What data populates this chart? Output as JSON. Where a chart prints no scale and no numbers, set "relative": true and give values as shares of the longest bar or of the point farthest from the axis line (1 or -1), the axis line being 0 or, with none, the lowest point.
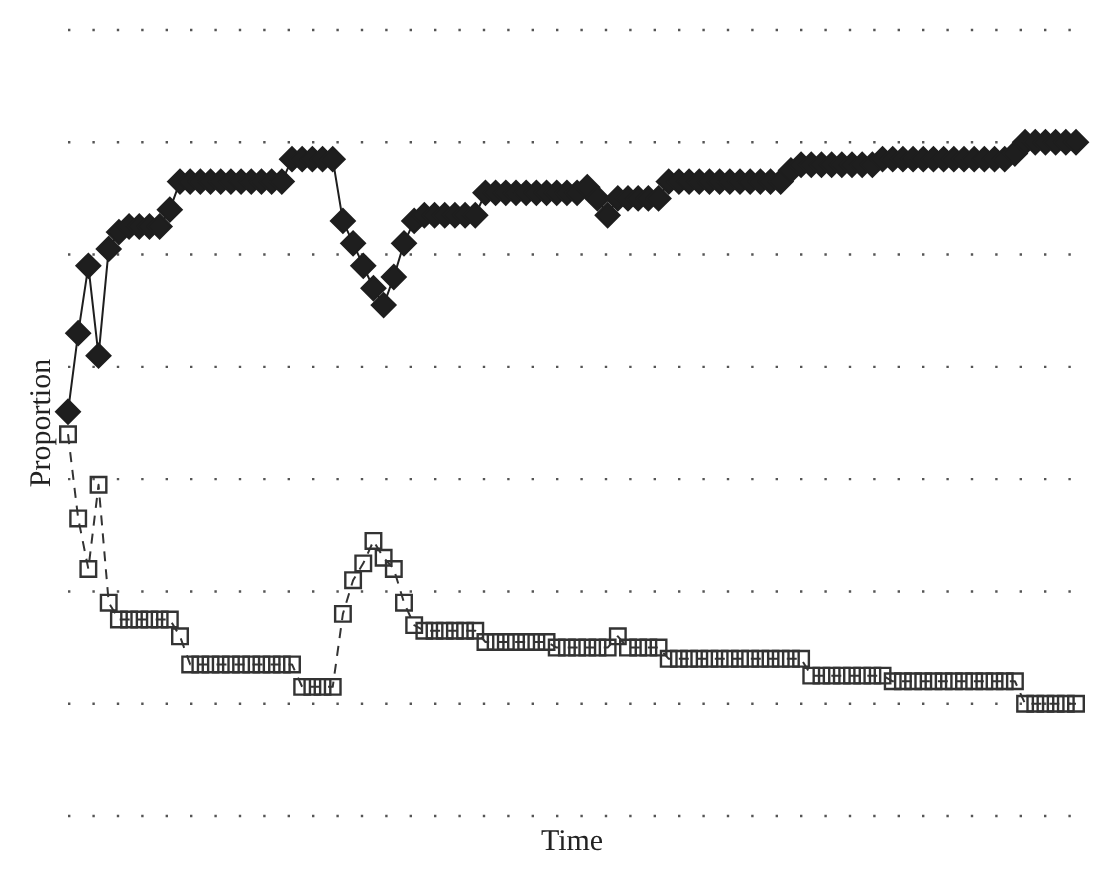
{
  "chart_data": {
    "type": "line",
    "xlabel": "Time",
    "ylabel": "Proportion",
    "relative": true,
    "grid": "y",
    "categories": [
      null,
      null,
      null,
      null,
      null,
      null,
      null,
      null,
      null,
      null,
      null,
      null,
      null,
      null,
      null,
      null,
      null,
      null,
      null,
      null,
      null,
      null,
      null,
      null,
      null,
      null,
      null,
      null,
      null,
      null,
      null,
      null,
      null,
      null,
      null,
      null,
      null,
      null,
      null,
      null,
      null,
      null,
      null,
      null,
      null,
      null,
      null,
      null,
      null,
      null,
      null,
      null,
      null,
      null,
      null,
      null,
      null,
      null,
      null,
      null,
      null,
      null,
      null,
      null,
      null,
      null,
      null,
      null,
      null,
      null,
      null,
      null,
      null,
      null,
      null,
      null,
      null,
      null,
      null,
      null,
      null,
      null,
      null,
      null,
      null,
      null,
      null,
      null,
      null,
      null,
      null,
      null,
      null,
      null,
      null,
      null,
      null,
      null,
      null,
      null
    ],
    "series": [
      {
        "color": "#1e1e1e",
        "marker": "diamond",
        "line_style": "solid",
        "values": [
          0.52,
          0.66,
          0.78,
          0.62,
          0.81,
          0.84,
          0.85,
          0.85,
          0.85,
          0.85,
          0.88,
          0.93,
          0.93,
          0.93,
          0.93,
          0.93,
          0.93,
          0.93,
          0.93,
          0.93,
          0.93,
          0.93,
          0.97,
          0.97,
          0.97,
          0.97,
          0.97,
          0.86,
          0.82,
          0.78,
          0.74,
          0.71,
          0.76,
          0.82,
          0.86,
          0.87,
          0.87,
          0.87,
          0.87,
          0.87,
          0.87,
          0.91,
          0.91,
          0.91,
          0.91,
          0.91,
          0.91,
          0.91,
          0.91,
          0.91,
          0.91,
          0.92,
          0.9,
          0.87,
          0.9,
          0.9,
          0.9,
          0.9,
          0.9,
          0.93,
          0.93,
          0.93,
          0.93,
          0.93,
          0.93,
          0.93,
          0.93,
          0.93,
          0.93,
          0.93,
          0.93,
          0.95,
          0.96,
          0.96,
          0.96,
          0.96,
          0.96,
          0.96,
          0.96,
          0.96,
          0.97,
          0.97,
          0.97,
          0.97,
          0.97,
          0.97,
          0.97,
          0.97,
          0.97,
          0.97,
          0.97,
          0.97,
          0.97,
          0.98,
          1,
          1,
          1,
          1,
          1,
          1
        ]
      },
      {
        "color": "#333333",
        "marker": "square",
        "line_style": "dashed",
        "values": [
          0.48,
          0.33,
          0.24,
          0.39,
          0.18,
          0.15,
          0.15,
          0.15,
          0.15,
          0.15,
          0.15,
          0.12,
          0.07,
          0.07,
          0.07,
          0.07,
          0.07,
          0.07,
          0.07,
          0.07,
          0.07,
          0.07,
          0.07,
          0.03,
          0.03,
          0.03,
          0.03,
          0.16,
          0.22,
          0.25,
          0.29,
          0.26,
          0.24,
          0.18,
          0.14,
          0.13,
          0.13,
          0.13,
          0.13,
          0.13,
          0.13,
          0.11,
          0.11,
          0.11,
          0.11,
          0.11,
          0.11,
          0.11,
          0.1,
          0.1,
          0.1,
          0.1,
          0.1,
          0.1,
          0.12,
          0.1,
          0.1,
          0.1,
          0.1,
          0.08,
          0.08,
          0.08,
          0.08,
          0.08,
          0.08,
          0.08,
          0.08,
          0.08,
          0.08,
          0.08,
          0.08,
          0.08,
          0.08,
          0.05,
          0.05,
          0.05,
          0.05,
          0.05,
          0.05,
          0.05,
          0.05,
          0.04,
          0.04,
          0.04,
          0.04,
          0.04,
          0.04,
          0.04,
          0.04,
          0.04,
          0.04,
          0.04,
          0.04,
          0.04,
          0,
          0,
          0,
          0,
          0,
          0
        ]
      }
    ]
  }
}
